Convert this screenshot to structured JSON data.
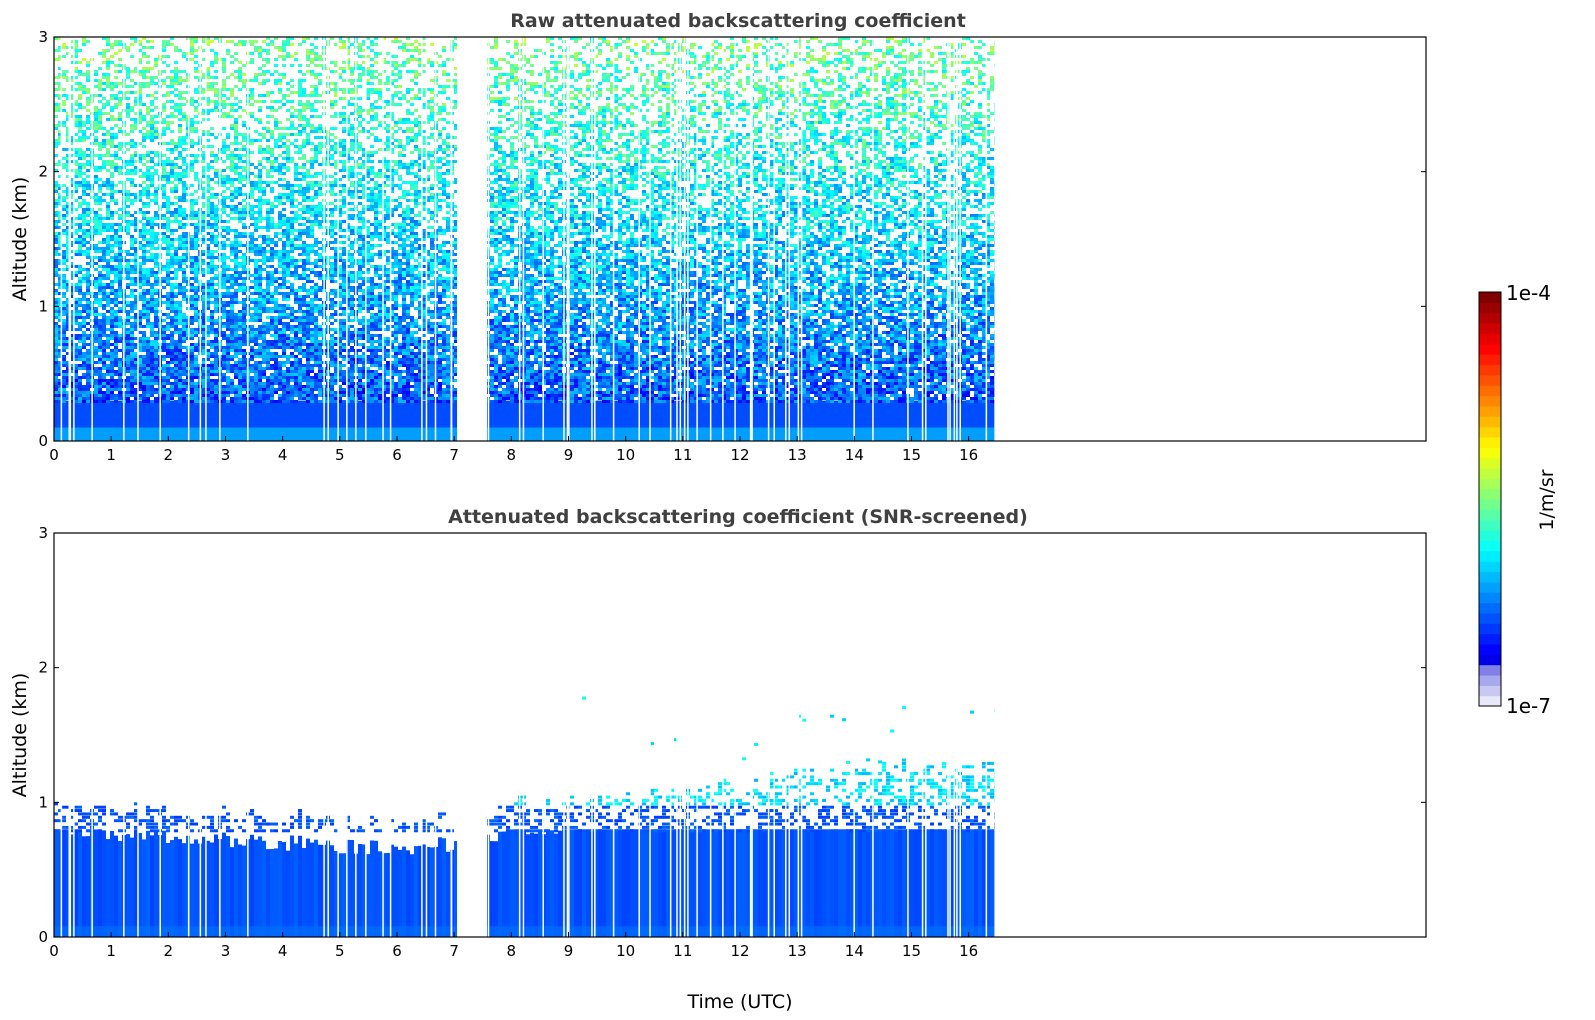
{
  "chart_data": [
    {
      "type": "heatmap",
      "title": "Raw attenuated backscattering coefficient",
      "xlabel": "",
      "ylabel": "Altitude (km)",
      "xlim": [
        0,
        24
      ],
      "ylim": [
        0,
        3
      ],
      "x_ticks": [
        "0",
        "1",
        "2",
        "3",
        "4",
        "5",
        "6",
        "7",
        "8",
        "9",
        "10",
        "11",
        "12",
        "13",
        "14",
        "15",
        "16"
      ],
      "y_ticks": [
        "0",
        "1",
        "2",
        "3"
      ],
      "data_extent_hours": [
        0,
        16.45
      ],
      "data_gap_hours": [
        7.05,
        7.55
      ],
      "profile_layers": [
        {
          "alt_km": [
            0.0,
            0.3
          ],
          "level": "blue-dense"
        },
        {
          "alt_km": [
            0.3,
            1.0
          ],
          "level": "blue"
        },
        {
          "alt_km": [
            1.0,
            2.0
          ],
          "level": "blue-cyan-noisy"
        },
        {
          "alt_km": [
            2.0,
            3.0
          ],
          "level": "cyan-green-noisy"
        }
      ]
    },
    {
      "type": "heatmap",
      "title": "Attenuated backscattering coefficient (SNR-screened)",
      "xlabel": "Time (UTC)",
      "ylabel": "Altitude (km)",
      "xlim": [
        0,
        24
      ],
      "ylim": [
        0,
        3
      ],
      "x_ticks": [
        "0",
        "1",
        "2",
        "3",
        "4",
        "5",
        "6",
        "7",
        "8",
        "9",
        "10",
        "11",
        "12",
        "13",
        "14",
        "15",
        "16"
      ],
      "y_ticks": [
        "0",
        "1",
        "2",
        "3"
      ],
      "data_extent_hours": [
        0,
        16.45
      ],
      "data_gap_hours": [
        7.05,
        7.55
      ],
      "boundary_layer_top_km": [
        {
          "t": 0,
          "h": 0.95
        },
        {
          "t": 2,
          "h": 0.9
        },
        {
          "t": 4,
          "h": 0.85
        },
        {
          "t": 6,
          "h": 0.8
        },
        {
          "t": 7,
          "h": 0.85
        },
        {
          "t": 8,
          "h": 0.95
        },
        {
          "t": 10,
          "h": 1.0
        },
        {
          "t": 12,
          "h": 1.1
        },
        {
          "t": 14,
          "h": 1.2
        },
        {
          "t": 16.45,
          "h": 1.25
        }
      ]
    }
  ],
  "colorbar": {
    "label": "1/m/sr",
    "min_label": "1e-7",
    "max_label": "1e-4",
    "colormap": "jet"
  }
}
